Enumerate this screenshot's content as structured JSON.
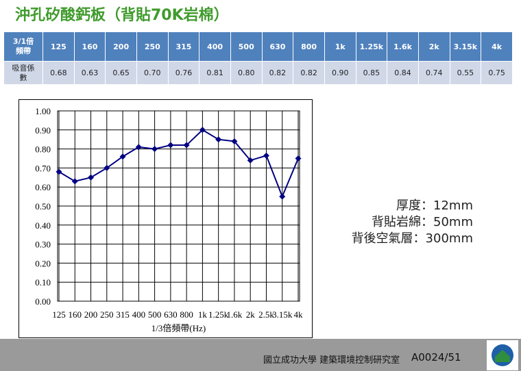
{
  "header": {
    "title": "沖孔矽酸鈣板（背貼70K岩棉）"
  },
  "table": {
    "header": [
      "3/1倍頻帶",
      "125",
      "160",
      "200",
      "250",
      "315",
      "400",
      "500",
      "630",
      "800",
      "1k",
      "1.25k",
      "1.6k",
      "2k",
      "3.15k",
      "4k"
    ],
    "rows": [
      [
        "吸音係數",
        "0.68",
        "0.63",
        "0.65",
        "0.70",
        "0.76",
        "0.81",
        "0.80",
        "0.82",
        "0.82",
        "0.90",
        "0.85",
        "0.84",
        "0.74",
        "0.55",
        "0.75"
      ]
    ]
  },
  "chart_data": {
    "type": "line",
    "x_label": "1/3倍頻帶(Hz)",
    "categories": [
      "125",
      "160",
      "200",
      "250",
      "315",
      "400",
      "500",
      "630",
      "800",
      "1k",
      "1.25k",
      "1.6k",
      "2k",
      "2.5k",
      "3.15k",
      "4k"
    ],
    "series": [
      {
        "color": "#000080",
        "values": [
          0.68,
          0.63,
          0.65,
          0.7,
          0.76,
          0.81,
          0.8,
          0.82,
          0.82,
          0.9,
          0.85,
          0.84,
          0.74,
          0.765,
          0.55,
          0.75
        ]
      }
    ],
    "ylim": [
      0,
      1
    ],
    "yticks": [
      {
        "value": 0,
        "label": "0.00"
      },
      {
        "value": 0.1,
        "label": "0.10"
      },
      {
        "value": 0.2,
        "label": "0.20"
      },
      {
        "value": 0.3,
        "label": "0.30"
      },
      {
        "value": 0.4,
        "label": "0.40"
      },
      {
        "value": 0.5,
        "label": "0.50"
      },
      {
        "value": 0.6,
        "label": "0.60"
      },
      {
        "value": 0.7,
        "label": "0.70"
      },
      {
        "value": 0.8,
        "label": "0.80"
      },
      {
        "value": 0.9,
        "label": "0.90"
      },
      {
        "value": 1,
        "label": "1.00"
      }
    ],
    "grid": true
  },
  "notes": [
    "厚度：12mm",
    "背貼岩綿：50mm",
    "背後空氣層：300mm"
  ],
  "footer": {
    "org": "國立成功大學 建築環境控制研究室",
    "page": "A0024/51"
  }
}
